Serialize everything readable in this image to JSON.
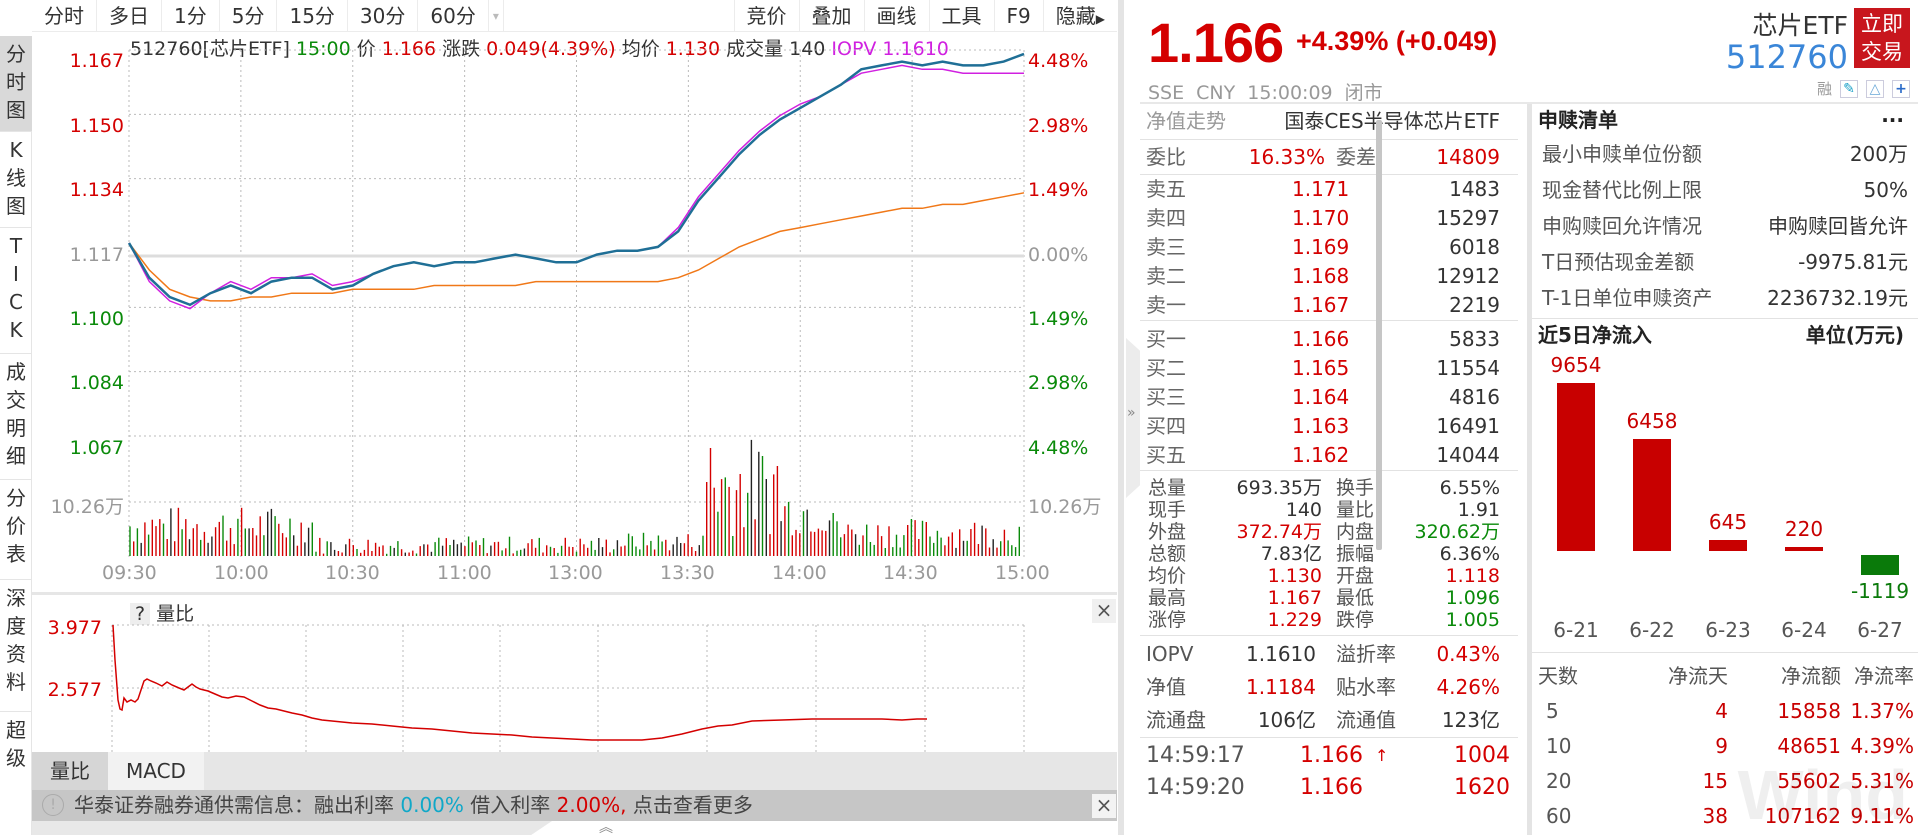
{
  "toolbar": {
    "left_tabs": [
      "分时",
      "多日",
      "1分",
      "5分",
      "15分",
      "30分",
      "60分"
    ],
    "right_tabs": [
      "竞价",
      "叠加",
      "画线",
      "工具",
      "F9",
      "隐藏"
    ]
  },
  "side_nav": [
    {
      "label": "分时图",
      "active": true
    },
    {
      "label": "K线图",
      "active": false
    },
    {
      "label": "TICK",
      "active": false
    },
    {
      "label": "成交明细",
      "active": false
    },
    {
      "label": "分价表",
      "active": false
    },
    {
      "label": "深度资料",
      "active": false
    },
    {
      "label": "超级",
      "active": false
    }
  ],
  "chart_info": {
    "security": "512760[芯片ETF]",
    "time": "15:00",
    "price_label": "价",
    "price": "1.166",
    "change_label": "涨跌",
    "change": "0.049(4.39%)",
    "avg_label": "均价",
    "avg": "1.130",
    "volume_label": "成交量",
    "volume": "140",
    "iopv_label": "IOPV",
    "iopv": "1.1610"
  },
  "chart_data": {
    "type": "line",
    "title": "512760[芯片ETF] 分时",
    "x": [
      "09:30",
      "10:00",
      "10:30",
      "11:00",
      "13:00",
      "13:30",
      "14:00",
      "14:30",
      "15:00"
    ],
    "y_left_ticks": [
      "1.167",
      "1.150",
      "1.134",
      "1.117",
      "1.100",
      "1.084",
      "1.067"
    ],
    "y_right_ticks": [
      "4.48%",
      "2.98%",
      "1.49%",
      "0.00%",
      "1.49%",
      "2.98%",
      "4.48%"
    ],
    "prev_close": 1.117,
    "ylim": [
      1.067,
      1.167
    ],
    "volume_axis_label": "10.26万",
    "series": [
      {
        "name": "价格",
        "color": "#1f6f96",
        "values": [
          1.117,
          1.108,
          1.103,
          1.101,
          1.104,
          1.106,
          1.104,
          1.107,
          1.108,
          1.108,
          1.105,
          1.106,
          1.109,
          1.111,
          1.112,
          1.111,
          1.112,
          1.112,
          1.113,
          1.114,
          1.113,
          1.112,
          1.112,
          1.114,
          1.115,
          1.115,
          1.116,
          1.12,
          1.128,
          1.134,
          1.14,
          1.145,
          1.149,
          1.152,
          1.155,
          1.158,
          1.162,
          1.163,
          1.164,
          1.163,
          1.164,
          1.163,
          1.163,
          1.164,
          1.166
        ]
      },
      {
        "name": "IOPV",
        "color": "#d020e0",
        "values": [
          1.117,
          1.107,
          1.102,
          1.1,
          1.104,
          1.107,
          1.105,
          1.108,
          1.108,
          1.109,
          1.106,
          1.107,
          1.109,
          1.111,
          1.112,
          1.111,
          1.112,
          1.112,
          1.113,
          1.114,
          1.113,
          1.112,
          1.112,
          1.114,
          1.115,
          1.115,
          1.116,
          1.121,
          1.129,
          1.135,
          1.141,
          1.146,
          1.15,
          1.153,
          1.155,
          1.158,
          1.161,
          1.162,
          1.163,
          1.162,
          1.162,
          1.161,
          1.161,
          1.161,
          1.161
        ]
      },
      {
        "name": "均价",
        "color": "#f07818",
        "values": [
          1.117,
          1.11,
          1.105,
          1.103,
          1.102,
          1.102,
          1.103,
          1.103,
          1.104,
          1.104,
          1.104,
          1.105,
          1.105,
          1.105,
          1.105,
          1.106,
          1.106,
          1.106,
          1.106,
          1.106,
          1.107,
          1.107,
          1.107,
          1.107,
          1.107,
          1.107,
          1.107,
          1.108,
          1.11,
          1.113,
          1.116,
          1.118,
          1.12,
          1.121,
          1.122,
          1.123,
          1.124,
          1.125,
          1.126,
          1.126,
          1.127,
          1.127,
          1.128,
          1.129,
          1.13
        ]
      }
    ]
  },
  "sub_chart": {
    "help": "?",
    "title": "量比",
    "y_ticks": [
      "3.977",
      "2.577"
    ],
    "tabs": [
      "量比",
      "MACD"
    ]
  },
  "notice": {
    "text1": "华泰证券融券通供需信息：融出利率",
    "rate1": "0.00%",
    "text2": "借入利率",
    "rate2": "2.00%,",
    "text3": "点击查看更多"
  },
  "quote": {
    "price": "1.166",
    "change": "+4.39% (+0.049)",
    "market": "SSE  CNY  15:00:09  闭市",
    "name": "芯片ETF",
    "code": "512760",
    "trade_button": [
      "立即",
      "交易"
    ],
    "icons": [
      "融",
      "edit-icon",
      "bell-icon",
      "plus-icon"
    ]
  },
  "book": {
    "nav_label": "净值走势",
    "fund_name": "国泰CES半导体芯片ETF",
    "wb_label": "委比",
    "wb": "16.33%",
    "wc_label": "委差",
    "wc": "14809",
    "asks": [
      {
        "label": "卖五",
        "price": "1.171",
        "vol": "1483"
      },
      {
        "label": "卖四",
        "price": "1.170",
        "vol": "15297"
      },
      {
        "label": "卖三",
        "price": "1.169",
        "vol": "6018"
      },
      {
        "label": "卖二",
        "price": "1.168",
        "vol": "12912"
      },
      {
        "label": "卖一",
        "price": "1.167",
        "vol": "2219"
      }
    ],
    "bids": [
      {
        "label": "买一",
        "price": "1.166",
        "vol": "5833"
      },
      {
        "label": "买二",
        "price": "1.165",
        "vol": "11554"
      },
      {
        "label": "买三",
        "price": "1.164",
        "vol": "4816"
      },
      {
        "label": "买四",
        "price": "1.163",
        "vol": "16491"
      },
      {
        "label": "买五",
        "price": "1.162",
        "vol": "14044"
      }
    ],
    "details": [
      {
        "l1": "总量",
        "v1": "693.35万",
        "c1": "#333",
        "l2": "换手",
        "v2": "6.55%",
        "c2": "#333"
      },
      {
        "l1": "现手",
        "v1": "140",
        "c1": "#333",
        "l2": "量比",
        "v2": "1.91",
        "c2": "#333"
      },
      {
        "l1": "外盘",
        "v1": "372.74万",
        "c1": "#d40000",
        "l2": "内盘",
        "v2": "320.62万",
        "c2": "#0a8a0a"
      },
      {
        "l1": "总额",
        "v1": "7.83亿",
        "c1": "#333",
        "l2": "振幅",
        "v2": "6.36%",
        "c2": "#333"
      },
      {
        "l1": "均价",
        "v1": "1.130",
        "c1": "#d40000",
        "l2": "开盘",
        "v2": "1.118",
        "c2": "#d40000"
      },
      {
        "l1": "最高",
        "v1": "1.167",
        "c1": "#d40000",
        "l2": "最低",
        "v2": "1.096",
        "c2": "#0a8a0a"
      },
      {
        "l1": "涨停",
        "v1": "1.229",
        "c1": "#d40000",
        "l2": "跌停",
        "v2": "1.005",
        "c2": "#0a8a0a"
      }
    ],
    "nav": [
      {
        "l1": "IOPV",
        "v1": "1.1610",
        "c1": "#333",
        "l2": "溢折率",
        "v2": "0.43%",
        "c2": "#d40000"
      },
      {
        "l1": "净值",
        "v1": "1.1184",
        "c1": "#d40000",
        "l2": "贴水率",
        "v2": "4.26%",
        "c2": "#d40000"
      },
      {
        "l1": "流通盘",
        "v1": "106亿",
        "c1": "#333",
        "l2": "流通值",
        "v2": "123亿",
        "c2": "#333"
      }
    ],
    "ticks": [
      {
        "time": "14:59:17",
        "price": "1.166",
        "arrow": "↑",
        "vol": "1004"
      },
      {
        "time": "14:59:20",
        "price": "1.166",
        "arrow": "",
        "vol": "1620"
      }
    ]
  },
  "creation": {
    "title": "申赎清单",
    "more": "···",
    "rows": [
      {
        "label": "最小申赎单位份额",
        "value": "200万"
      },
      {
        "label": "现金替代比例上限",
        "value": "50%"
      },
      {
        "label": "申购赎回允许情况",
        "value": "申购赎回皆允许"
      },
      {
        "label": "T日预估现金差额",
        "value": "-9975.81元"
      },
      {
        "label": "T-1日单位申赎资产",
        "value": "2236732.19元"
      }
    ]
  },
  "net_flow": {
    "title": "近5日净流入",
    "unit": "单位(万元)",
    "bars": [
      {
        "date": "6-21",
        "value": 9654
      },
      {
        "date": "6-22",
        "value": 6458
      },
      {
        "date": "6-23",
        "value": 645
      },
      {
        "date": "6-24",
        "value": 220
      },
      {
        "date": "6-27",
        "value": -1119
      }
    ],
    "headers": [
      "天数",
      "净流天",
      "净流额",
      "净流率"
    ],
    "rows": [
      [
        "5",
        "4",
        "15858",
        "1.37%"
      ],
      [
        "10",
        "9",
        "48651",
        "4.39%"
      ],
      [
        "20",
        "15",
        "55602",
        "5.31%"
      ],
      [
        "60",
        "38",
        "107162",
        "9.11%"
      ]
    ],
    "watermark": "Wind"
  },
  "colors": {
    "up": "#d40000",
    "down": "#0a8a0a",
    "price_line": "#1f6f96",
    "iopv": "#d020e0",
    "avg": "#f07818",
    "accent": "#3a86d8",
    "trade_btn": "#c8161d"
  }
}
